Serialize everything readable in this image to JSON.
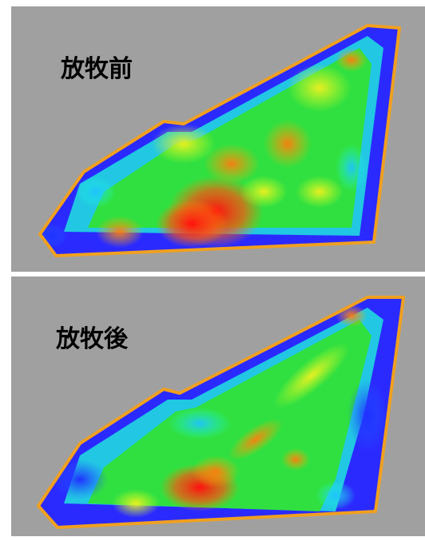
{
  "panels": [
    {
      "label": "放牧前"
    },
    {
      "label": "放牧後"
    }
  ]
}
